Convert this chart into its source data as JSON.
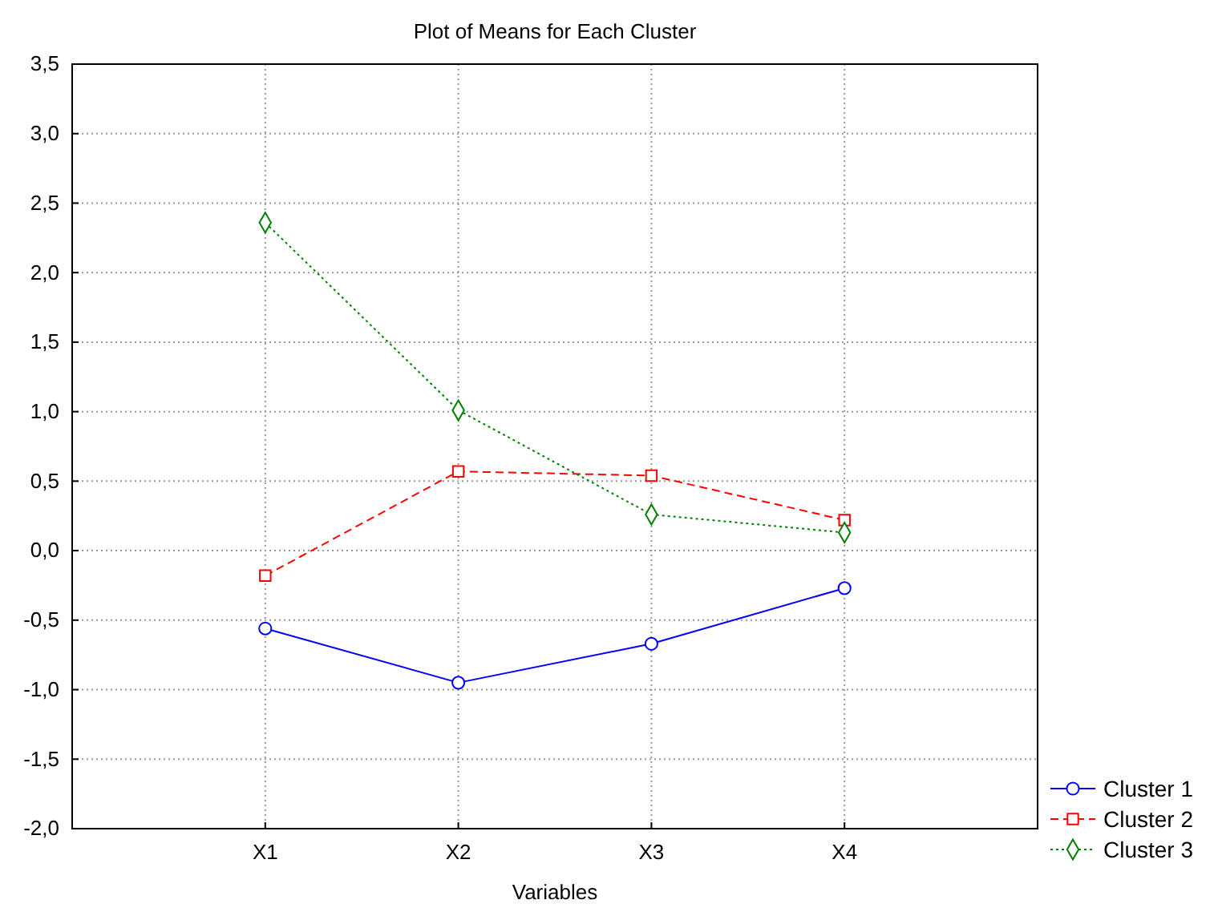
{
  "chart_data": {
    "type": "line",
    "title": "Plot of Means for Each Cluster",
    "xlabel": "Variables",
    "categories": [
      "X1",
      "X2",
      "X3",
      "X4"
    ],
    "series": [
      {
        "name": "Cluster  1",
        "color": "#0000ff",
        "values": [
          -0.56,
          -0.95,
          -0.67,
          -0.27
        ],
        "marker": "circle",
        "line_style": "solid"
      },
      {
        "name": "Cluster  2",
        "color": "#ff0000",
        "values": [
          -0.18,
          0.57,
          0.54,
          0.22
        ],
        "marker": "square",
        "line_style": "dashed"
      },
      {
        "name": "Cluster  3",
        "color": "#008000",
        "values": [
          2.36,
          1.01,
          0.26,
          0.13
        ],
        "marker": "diamond",
        "line_style": "dotted"
      }
    ],
    "ylim": [
      -2.0,
      3.5
    ],
    "yticks": [
      {
        "value": -2.0,
        "label": "-2,0"
      },
      {
        "value": -1.5,
        "label": "-1,5"
      },
      {
        "value": -1.0,
        "label": "-1,0"
      },
      {
        "value": -0.5,
        "label": "-0,5"
      },
      {
        "value": 0.0,
        "label": "0,0"
      },
      {
        "value": 0.5,
        "label": "0,5"
      },
      {
        "value": 1.0,
        "label": "1,0"
      },
      {
        "value": 1.5,
        "label": "1,5"
      },
      {
        "value": 2.0,
        "label": "2,0"
      },
      {
        "value": 2.5,
        "label": "2,5"
      },
      {
        "value": 3.0,
        "label": "3,0"
      },
      {
        "value": 3.5,
        "label": "3,5"
      }
    ],
    "grid": true,
    "legend": "bottom right"
  }
}
